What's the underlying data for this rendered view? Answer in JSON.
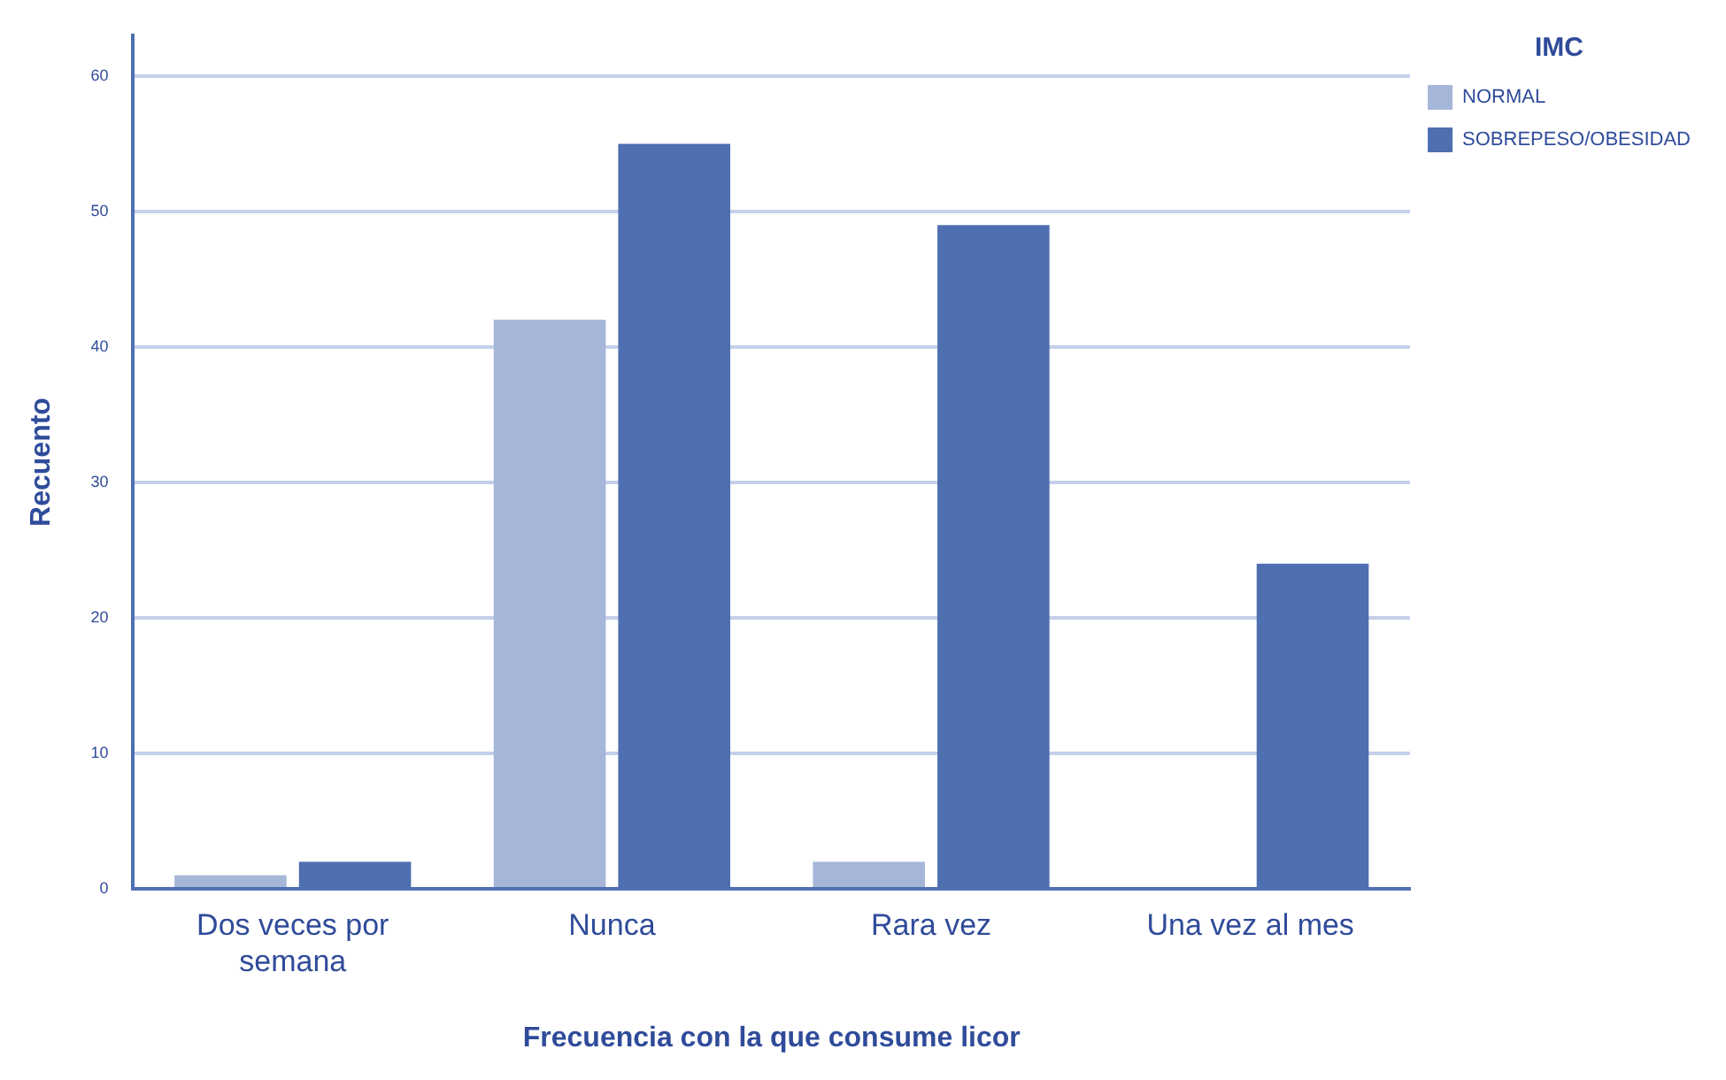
{
  "chart_data": {
    "type": "bar",
    "xlabel": "Frecuencia con la que consume licor",
    "ylabel": "Recuento",
    "legend_title": "IMC",
    "categories": [
      "Dos veces por semana",
      "Nunca",
      "Rara vez",
      "Una vez al mes"
    ],
    "series": [
      {
        "name": "NORMAL",
        "color": "#a6b6d8",
        "values": [
          1,
          42,
          2,
          0
        ]
      },
      {
        "name": "SOBREPESO/OBESIDAD",
        "color": "#4e6fb0",
        "values": [
          2,
          55,
          49,
          24
        ]
      }
    ],
    "ylim": [
      0,
      63
    ],
    "yticks": [
      0,
      10,
      20,
      30,
      40,
      50,
      60
    ],
    "grid": "y",
    "legend": "top right"
  }
}
